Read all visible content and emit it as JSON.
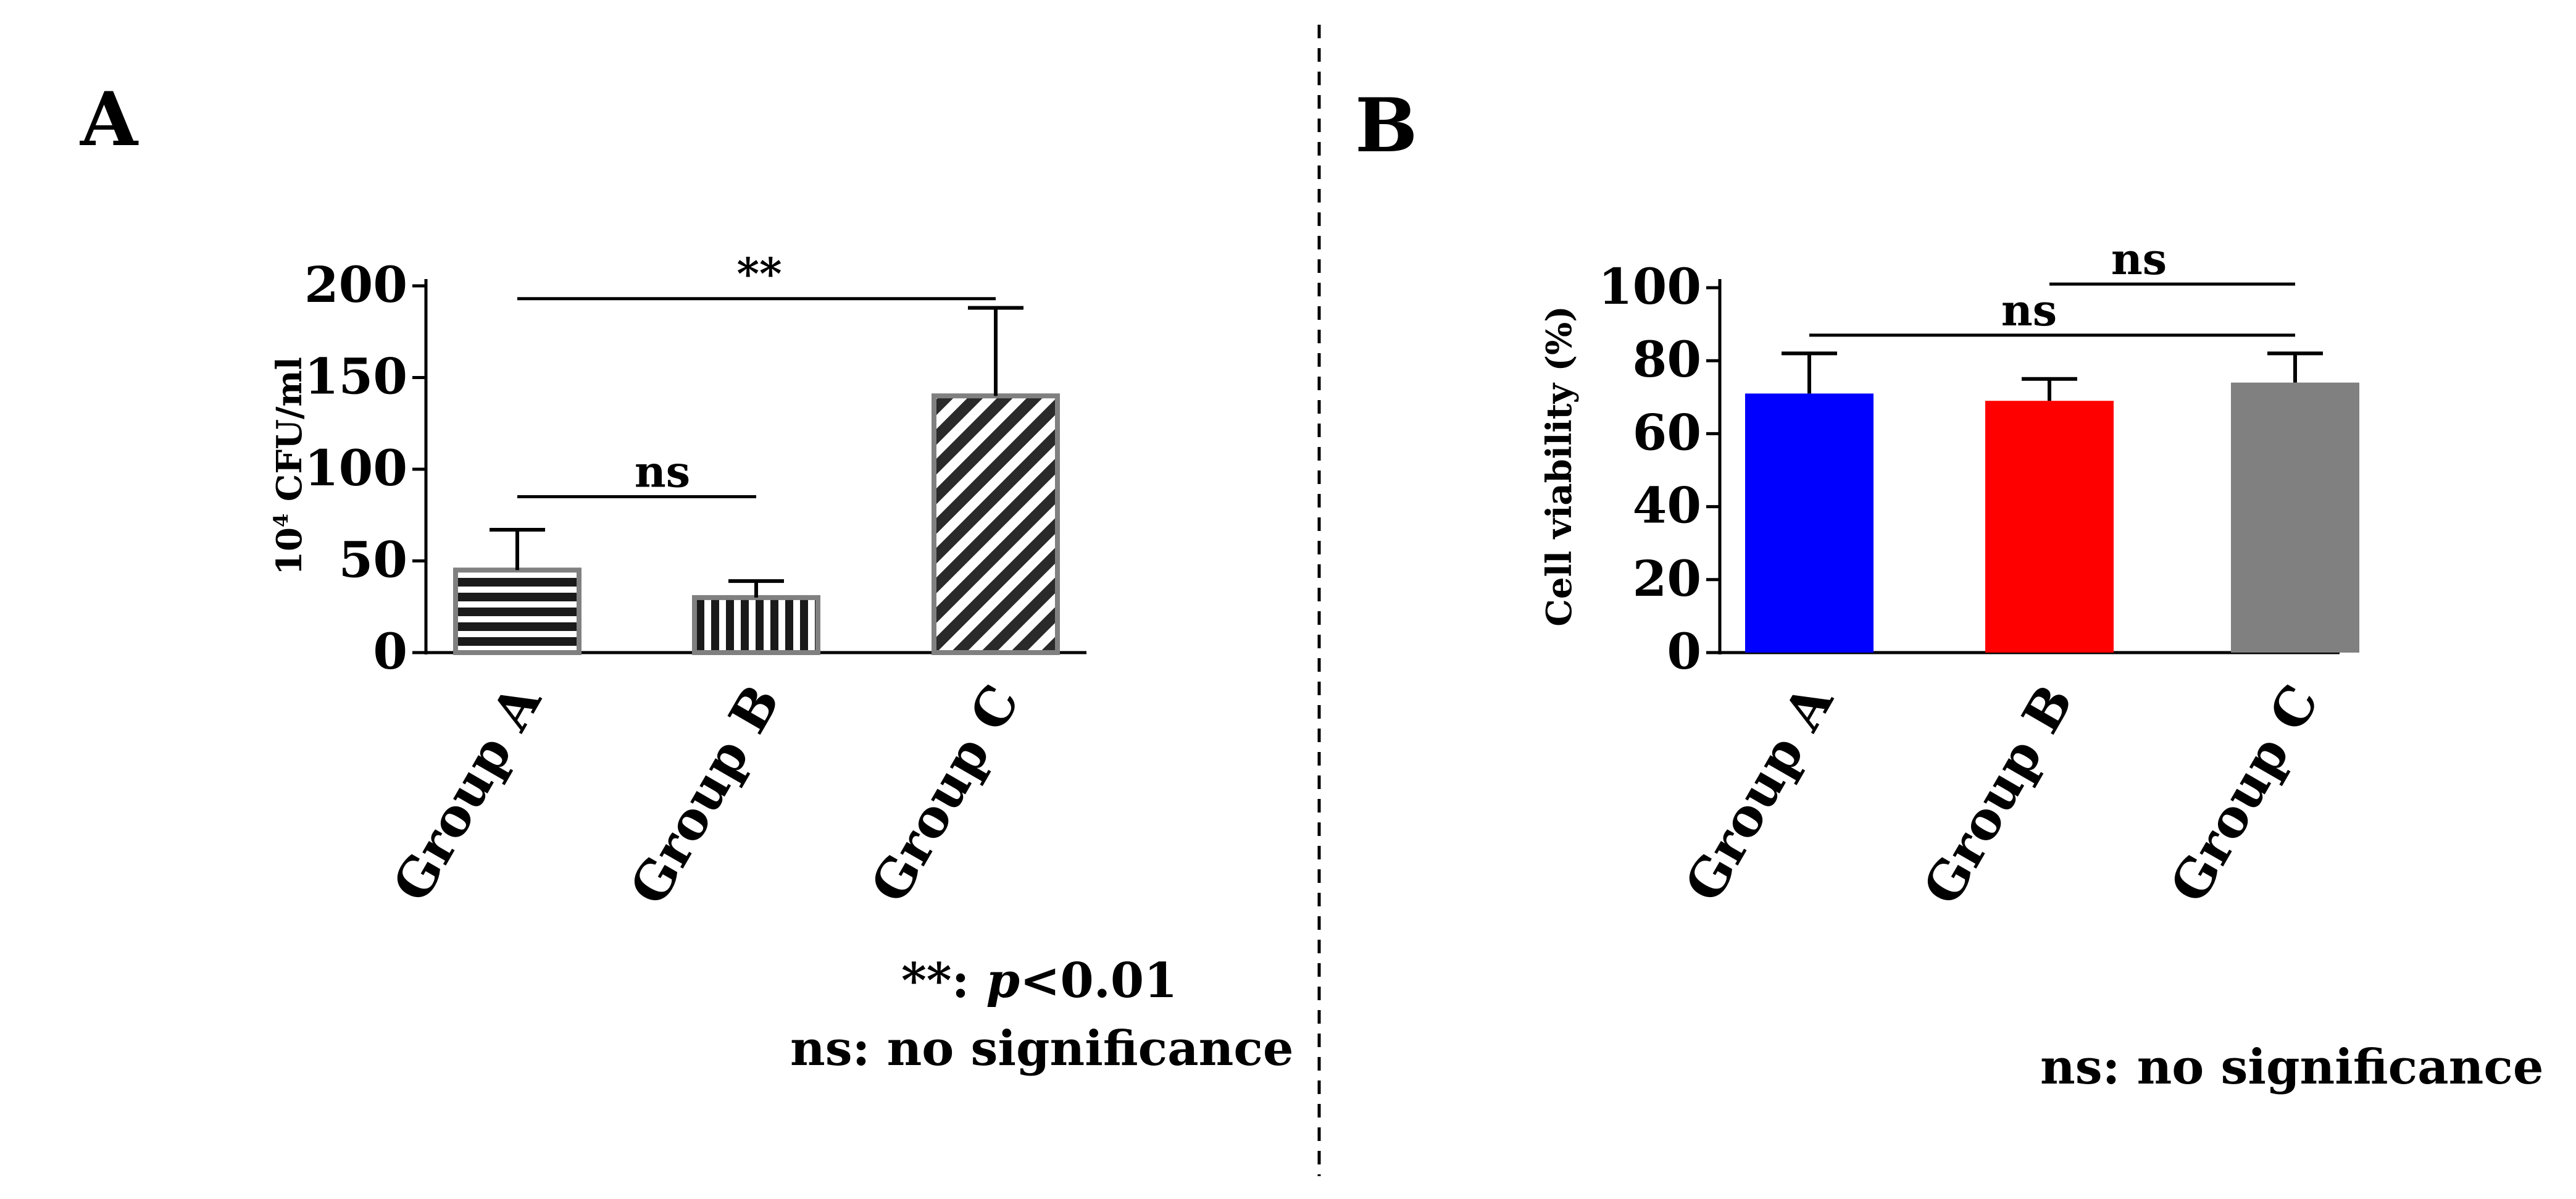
{
  "panel_a": {
    "letter": "A",
    "legend": {
      "line1_stars": "**",
      "line1_sep": ": ",
      "line1_p": "p",
      "line1_rest": "<0.01",
      "line2": "ns: no significance"
    }
  },
  "panel_b": {
    "letter": "B",
    "legend": {
      "line1": "ns: no significance"
    }
  },
  "chart_data": [
    {
      "type": "bar",
      "panel": "A",
      "title": "",
      "xlabel": "",
      "ylabel_prefix": "10",
      "ylabel_exp": "4",
      "ylabel_suffix": " CFU/ml",
      "ylim": [
        0,
        200
      ],
      "yticks": [
        0,
        50,
        100,
        150,
        200
      ],
      "categories": [
        "Group A",
        "Group B",
        "Group C"
      ],
      "values": [
        45,
        30,
        140
      ],
      "errors": [
        22,
        9,
        48
      ],
      "patterns": [
        "horizontal-stripes",
        "vertical-stripes",
        "diagonal-stripes"
      ],
      "colors": {
        "stripe": "#1a1a1a",
        "border": "#808080"
      },
      "annotations": [
        {
          "from": 0,
          "to": 2,
          "label": "**",
          "y": 193
        },
        {
          "from": 0,
          "to": 1,
          "label": "ns",
          "y": 85
        }
      ]
    },
    {
      "type": "bar",
      "panel": "B",
      "title": "",
      "xlabel": "",
      "ylabel": "Cell viability (%)",
      "ylim": [
        0,
        100
      ],
      "yticks": [
        0,
        20,
        40,
        60,
        80,
        100
      ],
      "categories": [
        "Group A",
        "Group B",
        "Group C"
      ],
      "values": [
        71,
        69,
        74
      ],
      "errors": [
        11,
        6,
        8
      ],
      "colors": [
        "#0000ff",
        "#ff0000",
        "#808080"
      ],
      "annotations": [
        {
          "from": 1,
          "to": 2,
          "label": "ns",
          "y": 101
        },
        {
          "from": 0,
          "to": 2,
          "label": "ns",
          "y": 87
        }
      ]
    }
  ]
}
